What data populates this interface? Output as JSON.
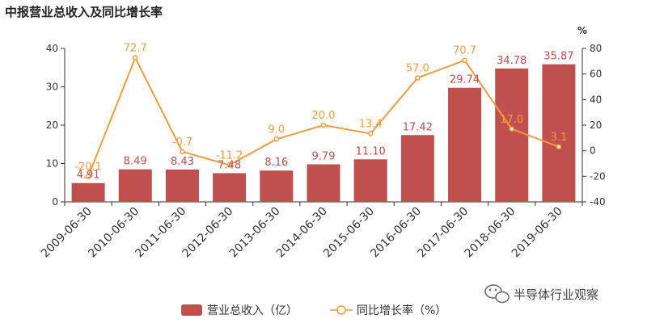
{
  "chart_data": {
    "type": "bar",
    "title": "中报营业总收入及同比增长率",
    "categories": [
      "2009-06-30",
      "2010-06-30",
      "2011-06-30",
      "2012-06-30",
      "2013-06-30",
      "2014-06-30",
      "2015-06-30",
      "2016-06-30",
      "2017-06-30",
      "2018-06-30",
      "2019-06-30"
    ],
    "series": [
      {
        "name": "营业总收入（亿）",
        "type": "bar",
        "axis": "left",
        "color": "#c0504d",
        "values": [
          4.91,
          8.49,
          8.43,
          7.48,
          8.16,
          9.79,
          11.1,
          17.42,
          29.74,
          34.78,
          35.87
        ],
        "labels": [
          "4.91",
          "8.49",
          "8.43",
          "7.48",
          "8.16",
          "9.79",
          "11.10",
          "17.42",
          "29.74",
          "34.78",
          "35.87"
        ]
      },
      {
        "name": "同比增长率（%）",
        "type": "line",
        "axis": "right",
        "color": "#f39c3d",
        "values": [
          -20.1,
          72.7,
          -0.7,
          -11.2,
          9.0,
          20.0,
          13.4,
          57.0,
          70.7,
          17.0,
          3.1
        ],
        "labels": [
          "-20.1",
          "72.7",
          "-0.7",
          "-11.2",
          "9.0",
          "20.0",
          "13.4",
          "57.0",
          "70.7",
          "17.0",
          "3.1"
        ]
      }
    ],
    "y_left": {
      "ylim": [
        0,
        40
      ],
      "ticks": [
        0,
        10,
        20,
        30,
        40
      ]
    },
    "y_right": {
      "ylim": [
        -40,
        80
      ],
      "ticks": [
        -40,
        -20,
        0,
        20,
        40,
        60,
        80
      ],
      "unit": "%"
    },
    "grid": false,
    "legend_position": "bottom-center"
  },
  "watermark": {
    "text": "半导体行业观察",
    "icon": "wechat-icon"
  }
}
